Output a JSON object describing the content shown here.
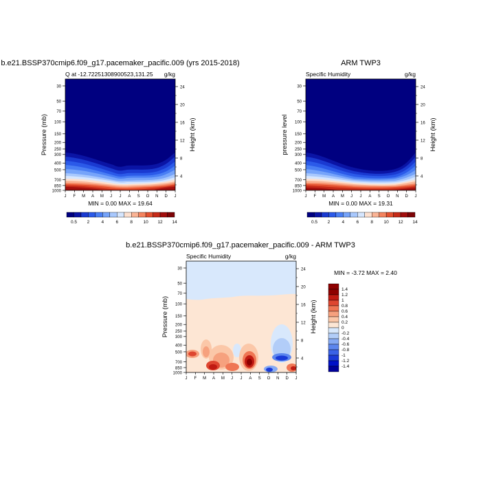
{
  "months": [
    "J",
    "F",
    "M",
    "A",
    "M",
    "J",
    "J",
    "A",
    "S",
    "O",
    "N",
    "D",
    "J"
  ],
  "pressure_ticks": [
    30,
    50,
    70,
    100,
    150,
    200,
    250,
    300,
    400,
    500,
    700,
    850,
    1000
  ],
  "top_left": {
    "title": "b.e21.BSSP370cmip6.f09_g17.pacemaker_pacific.009 (yrs 2015-2018)",
    "left_label": "Q at -12.72251308900523,131.25",
    "right_label": "g/kg",
    "ylabel": "Pressure (mb)",
    "ylabel_right": "Height (km)",
    "stats": "MIN =   0.00 MAX =  19.64",
    "height_ticks": [
      "4",
      "8",
      "12",
      "16",
      "20",
      "24"
    ],
    "colorbar_labels": [
      "0.5",
      "2",
      "4",
      "6",
      "8",
      "10",
      "12",
      "14"
    ]
  },
  "top_right": {
    "title": "ARM TWP3",
    "left_label": "Specific Humidity",
    "right_label": "g/kg",
    "ylabel": "pressure level",
    "ylabel_right": "Height (km)",
    "stats": "MIN =   0.00 MAX =  19.31",
    "height_ticks": [
      "4",
      "8",
      "12",
      "16",
      "20",
      "24"
    ],
    "colorbar_labels": [
      "0.5",
      "2",
      "4",
      "6",
      "8",
      "10",
      "12",
      "14"
    ]
  },
  "bottom": {
    "title": "b.e21.BSSP370cmip6.f09_g17.pacemaker_pacific.009 - ARM TWP3",
    "left_label": "Specific Humidity",
    "right_label": "g/kg",
    "ylabel": "Pressure (mb)",
    "ylabel_right": "Height (km)",
    "stats": "MIN =  -3.72 MAX =   2.40",
    "height_ticks": [
      "4",
      "8",
      "12",
      "16",
      "20",
      "24"
    ],
    "colorbar_labels": [
      "1.4",
      "1.2",
      "1",
      "0.8",
      "0.6",
      "0.4",
      "0.2",
      "0",
      "-0.2",
      "-0.4",
      "-0.6",
      "-0.8",
      "-1",
      "-1.2",
      "-1.4"
    ]
  },
  "chart_data": [
    {
      "type": "heatmap",
      "x": [
        "J",
        "F",
        "M",
        "A",
        "M",
        "J",
        "J",
        "A",
        "S",
        "O",
        "N",
        "D",
        "J"
      ],
      "y_pressure_mb": [
        30,
        50,
        70,
        100,
        150,
        200,
        250,
        300,
        400,
        500,
        700,
        850,
        1000
      ],
      "moist_layer_top_mb": [
        300,
        330,
        370,
        400,
        420,
        460,
        540,
        480,
        510,
        520,
        510,
        400,
        300
      ],
      "value_range": [
        0,
        19.64
      ],
      "colors": [
        "#000080",
        "#0a14a5",
        "#1a3ad1",
        "#2b5ae9",
        "#4a7ff4",
        "#76a4fa",
        "#a8c8fd",
        "#d6e6fe",
        "#fde0cf",
        "#fbb495",
        "#f4845f",
        "#e3502f",
        "#c62a18",
        "#a20e0d",
        "#7e0406"
      ]
    },
    {
      "type": "heatmap",
      "x": [
        "J",
        "F",
        "M",
        "A",
        "M",
        "J",
        "J",
        "A",
        "S",
        "O",
        "N",
        "D",
        "J"
      ],
      "y_pressure_mb": [
        30,
        50,
        70,
        100,
        150,
        200,
        250,
        300,
        400,
        500,
        700,
        850,
        1000
      ],
      "moist_layer_top_mb": [
        300,
        330,
        400,
        450,
        480,
        520,
        550,
        580,
        600,
        590,
        560,
        420,
        300
      ],
      "value_range": [
        0,
        19.31
      ],
      "colors": [
        "#000080",
        "#0a14a5",
        "#1a3ad1",
        "#2b5ae9",
        "#4a7ff4",
        "#76a4fa",
        "#a8c8fd",
        "#d6e6fe",
        "#fde0cf",
        "#fbb495",
        "#f4845f",
        "#e3502f",
        "#c62a18",
        "#a20e0d",
        "#7e0406"
      ]
    },
    {
      "type": "heatmap",
      "x": [
        "J",
        "F",
        "M",
        "A",
        "M",
        "J",
        "J",
        "A",
        "S",
        "O",
        "N",
        "D",
        "J"
      ],
      "y_pressure_mb": [
        30,
        50,
        70,
        100,
        150,
        200,
        250,
        300,
        400,
        500,
        700,
        850,
        1000
      ],
      "value_range": [
        -3.72,
        2.4
      ],
      "colors": [
        "#00009a",
        "#0010c8",
        "#1a3ad8",
        "#3a62e6",
        "#5c86ee",
        "#86aaf4",
        "#b2cdf8",
        "#d8e8fc",
        "#fde6d4",
        "#fbc7a8",
        "#f6a17e",
        "#ef7654",
        "#de4630",
        "#c01a12",
        "#8e0000"
      ]
    }
  ]
}
